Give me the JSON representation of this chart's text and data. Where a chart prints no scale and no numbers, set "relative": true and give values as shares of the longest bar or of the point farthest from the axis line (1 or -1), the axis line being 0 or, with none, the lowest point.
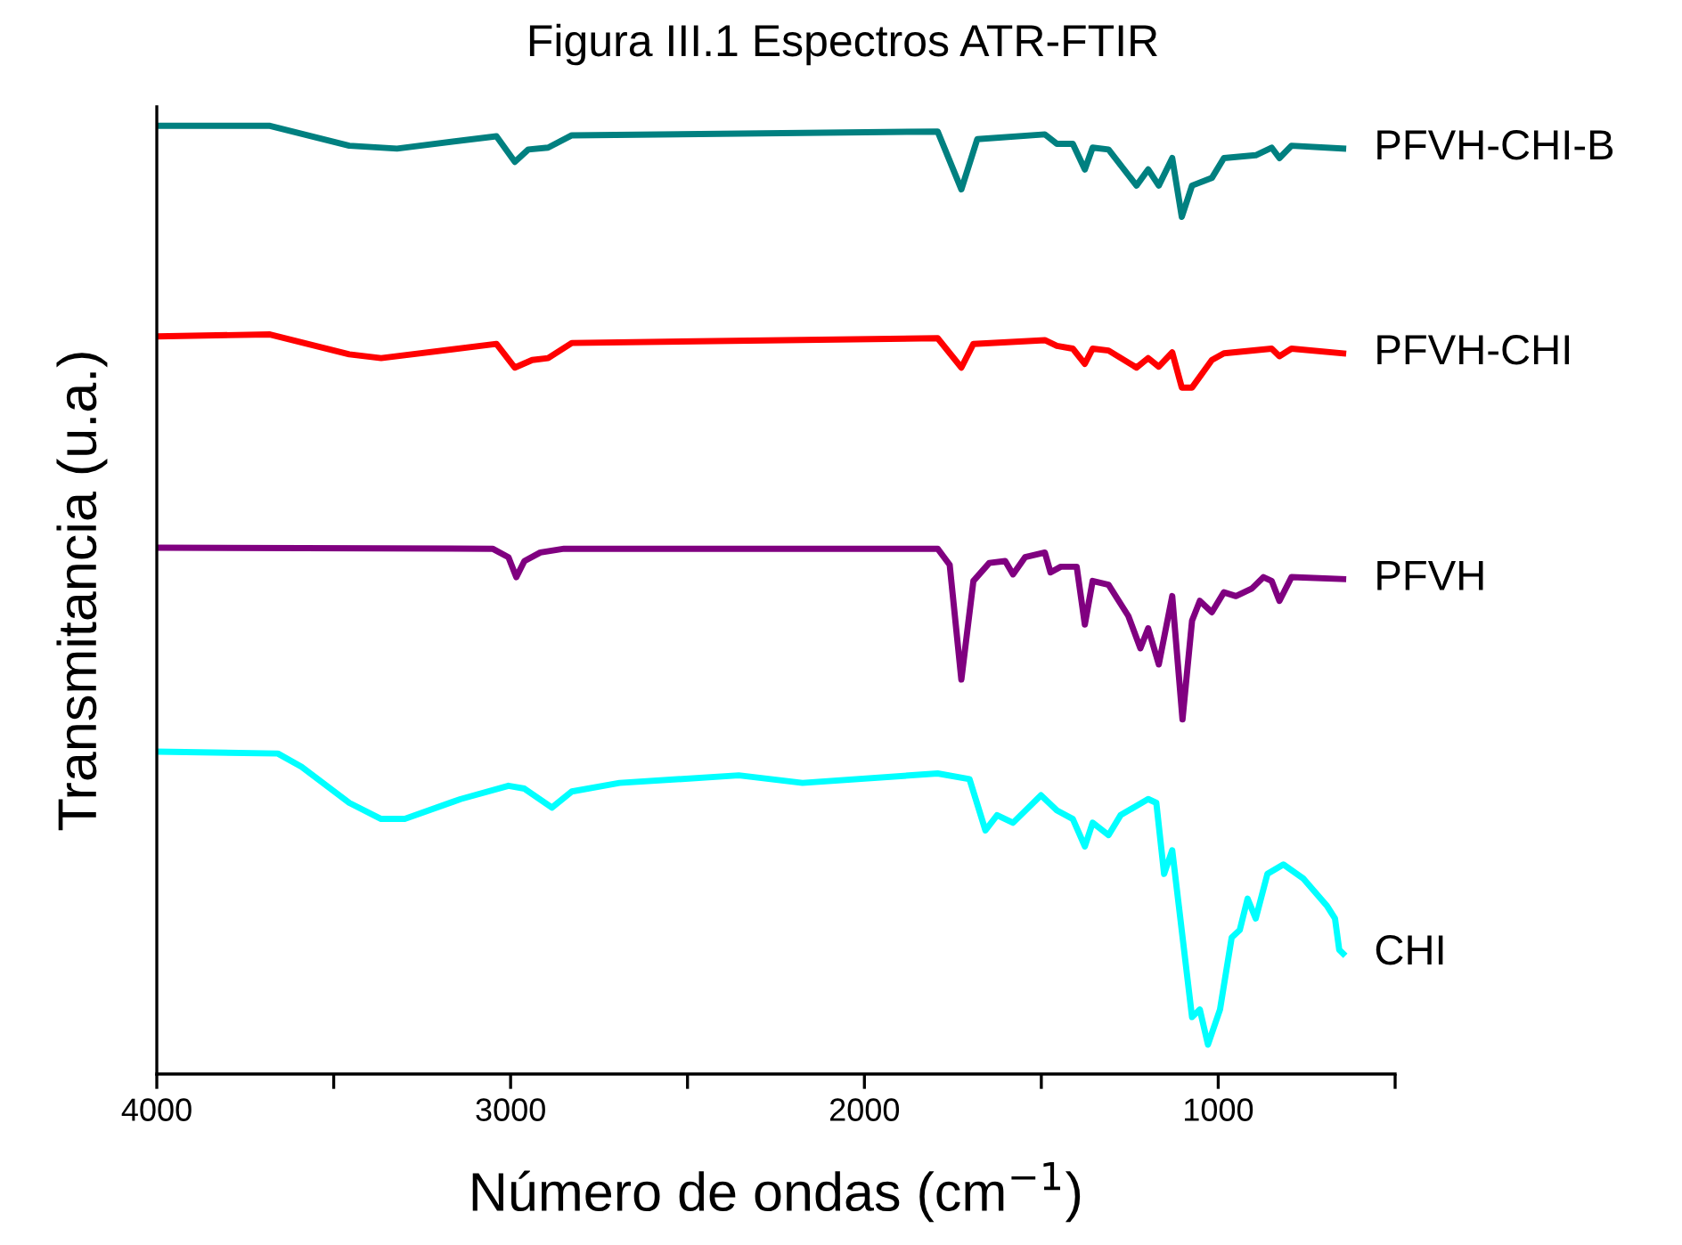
{
  "chart_data": {
    "type": "line",
    "title": "Figura III.1 Espectros ATR-FTIR",
    "xlabel": "Número de ondas (cm$^{−1}$)",
    "ylabel": "Transmitancia (u.a.)",
    "relative": true,
    "tick_labels": "x",
    "grid": false,
    "legend": false,
    "line_style": "solid",
    "marker": "none",
    "xlim": [
      4000,
      500
    ],
    "xticks": [
      4000,
      {
        "value": 3500,
        "label": null
      },
      3000,
      {
        "value": 2500,
        "label": null
      },
      2000,
      {
        "value": 1500,
        "label": null
      },
      1000,
      {
        "value": 500,
        "label": null
      }
    ],
    "series": [
      {
        "name": "PFVH-CHI-B",
        "color": "#008080",
        "x": [
          4000,
          3680,
          3456,
          3321,
          3040,
          2988,
          2950,
          2894,
          2827,
          1793,
          1726,
          1681,
          1490,
          1456,
          1411,
          1377,
          1355,
          1310,
          1231,
          1198,
          1168,
          1130,
          1103,
          1074,
          1018,
          984,
          894,
          849,
          827,
          793,
          647
        ],
        "values": [
          1.0,
          1.0,
          0.979,
          0.976,
          0.989,
          0.962,
          0.975,
          0.977,
          0.99,
          0.994,
          0.933,
          0.986,
          0.991,
          0.981,
          0.981,
          0.954,
          0.977,
          0.975,
          0.937,
          0.954,
          0.937,
          0.966,
          0.904,
          0.937,
          0.945,
          0.966,
          0.969,
          0.977,
          0.966,
          0.979,
          0.976
        ]
      },
      {
        "name": "PFVH-CHI",
        "color": "#ff0000",
        "x": [
          4000,
          3680,
          3456,
          3366,
          3040,
          2988,
          2939,
          2894,
          2827,
          1793,
          1726,
          1692,
          1490,
          1456,
          1411,
          1377,
          1355,
          1310,
          1231,
          1198,
          1168,
          1130,
          1103,
          1074,
          1018,
          984,
          849,
          827,
          793,
          647
        ],
        "values": [
          0.778,
          0.78,
          0.759,
          0.755,
          0.77,
          0.745,
          0.753,
          0.755,
          0.771,
          0.776,
          0.745,
          0.77,
          0.774,
          0.768,
          0.765,
          0.749,
          0.765,
          0.763,
          0.745,
          0.755,
          0.746,
          0.761,
          0.724,
          0.724,
          0.753,
          0.76,
          0.765,
          0.757,
          0.765,
          0.76
        ]
      },
      {
        "name": "PFVH",
        "color": "#800080",
        "x": [
          4000,
          3051,
          3006,
          2984,
          2961,
          2916,
          2849,
          1793,
          1759,
          1726,
          1692,
          1647,
          1602,
          1580,
          1546,
          1490,
          1474,
          1445,
          1400,
          1377,
          1355,
          1310,
          1254,
          1220,
          1198,
          1168,
          1130,
          1101,
          1074,
          1052,
          1018,
          984,
          950,
          905,
          872,
          849,
          827,
          793,
          647
        ],
        "values": [
          0.555,
          0.554,
          0.545,
          0.524,
          0.541,
          0.55,
          0.554,
          0.554,
          0.537,
          0.416,
          0.52,
          0.539,
          0.541,
          0.527,
          0.545,
          0.55,
          0.529,
          0.535,
          0.535,
          0.474,
          0.52,
          0.516,
          0.483,
          0.449,
          0.47,
          0.432,
          0.504,
          0.374,
          0.478,
          0.499,
          0.487,
          0.508,
          0.504,
          0.512,
          0.524,
          0.52,
          0.499,
          0.524,
          0.522
        ]
      },
      {
        "name": "CHI",
        "color": "#00ffff",
        "x": [
          4000,
          3658,
          3591,
          3456,
          3366,
          3299,
          3141,
          3006,
          2961,
          2883,
          2827,
          2692,
          2355,
          2175,
          1793,
          1703,
          1658,
          1625,
          1580,
          1501,
          1456,
          1411,
          1377,
          1355,
          1310,
          1276,
          1198,
          1175,
          1153,
          1130,
          1074,
          1052,
          1029,
          995,
          962,
          939,
          917,
          894,
          861,
          816,
          759,
          692,
          670,
          658,
          647
        ],
        "values": [
          0.34,
          0.338,
          0.324,
          0.286,
          0.269,
          0.269,
          0.29,
          0.304,
          0.301,
          0.281,
          0.298,
          0.307,
          0.315,
          0.307,
          0.317,
          0.311,
          0.257,
          0.273,
          0.265,
          0.294,
          0.278,
          0.269,
          0.24,
          0.265,
          0.252,
          0.273,
          0.29,
          0.286,
          0.211,
          0.236,
          0.06,
          0.068,
          0.031,
          0.068,
          0.144,
          0.152,
          0.185,
          0.164,
          0.211,
          0.221,
          0.206,
          0.177,
          0.164,
          0.131,
          0.127
        ]
      }
    ]
  }
}
